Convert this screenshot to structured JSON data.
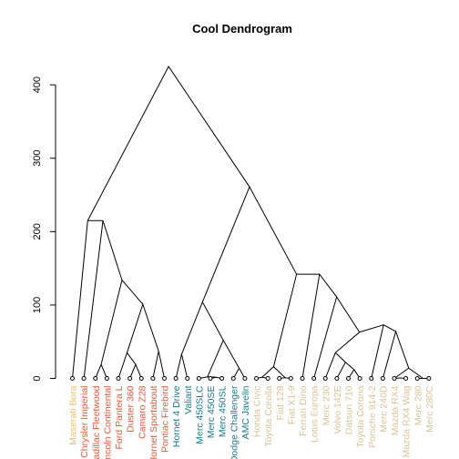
{
  "chart_data": {
    "type": "dendrogram",
    "title": "Cool Dendrogram",
    "xlabel": "",
    "ylabel": "",
    "ylim": [
      0,
      425
    ],
    "yticks": [
      0,
      100,
      200,
      300,
      400
    ],
    "grid": false,
    "colors": {
      "cluster1": "#E8C060",
      "cluster2": "#E05A3A",
      "cluster3": "#1A7A8A",
      "cluster4": "#D8C39A"
    },
    "leaves": [
      {
        "label": "Maserati Bora",
        "cluster": "cluster1"
      },
      {
        "label": "Chrysler Imperial",
        "cluster": "cluster2"
      },
      {
        "label": "Cadillac Fleetwood",
        "cluster": "cluster2"
      },
      {
        "label": "Lincoln Continental",
        "cluster": "cluster2"
      },
      {
        "label": "Ford Pantera L",
        "cluster": "cluster2"
      },
      {
        "label": "Duster 360",
        "cluster": "cluster2"
      },
      {
        "label": "Camaro Z28",
        "cluster": "cluster2"
      },
      {
        "label": "Hornet Sportabout",
        "cluster": "cluster2"
      },
      {
        "label": "Pontiac Firebird",
        "cluster": "cluster2"
      },
      {
        "label": "Hornet 4 Drive",
        "cluster": "cluster3"
      },
      {
        "label": "Valiant",
        "cluster": "cluster3"
      },
      {
        "label": "Merc 450SLC",
        "cluster": "cluster3"
      },
      {
        "label": "Merc 450SE",
        "cluster": "cluster3"
      },
      {
        "label": "Merc 450SL",
        "cluster": "cluster3"
      },
      {
        "label": "Dodge Challenger",
        "cluster": "cluster3"
      },
      {
        "label": "AMC Javelin",
        "cluster": "cluster3"
      },
      {
        "label": "Honda Civic",
        "cluster": "cluster4"
      },
      {
        "label": "Toyota Corolla",
        "cluster": "cluster4"
      },
      {
        "label": "Fiat 128",
        "cluster": "cluster4"
      },
      {
        "label": "Fiat X1-9",
        "cluster": "cluster4"
      },
      {
        "label": "Ferrari Dino",
        "cluster": "cluster4"
      },
      {
        "label": "Lotus Europa",
        "cluster": "cluster4"
      },
      {
        "label": "Merc 230",
        "cluster": "cluster4"
      },
      {
        "label": "Volvo 142E",
        "cluster": "cluster4"
      },
      {
        "label": "Datsun 710",
        "cluster": "cluster4"
      },
      {
        "label": "Toyota Corona",
        "cluster": "cluster4"
      },
      {
        "label": "Porsche 914-2",
        "cluster": "cluster4"
      },
      {
        "label": "Merc 240D",
        "cluster": "cluster4"
      },
      {
        "label": "Mazda RX4",
        "cluster": "cluster4"
      },
      {
        "label": "Mazda RX4 Wag",
        "cluster": "cluster4"
      },
      {
        "label": "Merc 280",
        "cluster": "cluster4"
      },
      {
        "label": "Merc 280C",
        "cluster": "cluster4"
      }
    ],
    "merges": [
      {
        "left": "Mazda RX4",
        "right": "Mazda RX4 Wag",
        "height": 0.6
      },
      {
        "left": "Merc 280",
        "right": "Merc 280C",
        "height": 0.0
      },
      {
        "left": "Merc 450SE",
        "right": "Merc 450SL",
        "height": 1.5
      },
      {
        "left": "Merc 450SLC",
        "right": "m3",
        "height": 2.1
      },
      {
        "left": "Honda Civic",
        "right": "Toyota Corolla",
        "height": 1.5
      },
      {
        "left": "Fiat 128",
        "right": "Fiat X1-9",
        "height": 1.0
      },
      {
        "left": "Dodge Challenger",
        "right": "AMC Javelin",
        "height": 14.0
      },
      {
        "left": "Hornet Sportabout",
        "right": "Pontiac Firebird",
        "height": 37.0
      },
      {
        "left": "Cadillac Fleetwood",
        "right": "Lincoln Continental",
        "height": 19.0
      },
      {
        "left": "Duster 360",
        "right": "Camaro Z28",
        "height": 19.0
      },
      {
        "left": "Datsun 710",
        "right": "Toyota Corona",
        "height": 12.0
      },
      {
        "left": "Volvo 142E",
        "right": "m11",
        "height": 22.0
      },
      {
        "left": "Merc 230",
        "right": "m12",
        "height": 35.0
      },
      {
        "left": "Ford Pantera L",
        "right": "m10",
        "height": 35.0
      },
      {
        "left": "m5",
        "right": "m6",
        "height": 16.0
      },
      {
        "left": "Mazda RX4",
        "right": "m2",
        "height": 14.0
      },
      {
        "left": "Merc 240D",
        "right": "m16",
        "height": 64.0
      },
      {
        "left": "Porsche 914-2",
        "right": "m17",
        "height": 73.0
      },
      {
        "left": "m13",
        "right": "m18",
        "height": 63.0
      },
      {
        "left": "Lotus Europa",
        "right": "m19",
        "height": 111.0
      },
      {
        "left": "Ferrari Dino",
        "right": "m20",
        "height": 142.0
      },
      {
        "left": "m15",
        "right": "m21",
        "height": 142.0
      },
      {
        "left": "Hornet 4 Drive",
        "right": "Valiant",
        "height": 33.0
      },
      {
        "left": "m4",
        "right": "m7",
        "height": 52.0
      },
      {
        "left": "m23",
        "right": "m24",
        "height": 104.0
      },
      {
        "left": "m25",
        "right": "m22",
        "height": 261.0
      },
      {
        "left": "m14",
        "right": "m8",
        "height": 101.0
      },
      {
        "left": "m9",
        "right": "m27",
        "height": 134.0
      },
      {
        "left": "Chrysler Imperial",
        "right": "m28",
        "height": 215.0
      },
      {
        "left": "Maserati Bora",
        "right": "m29",
        "height": 215.0
      },
      {
        "left": "m30",
        "right": "m26",
        "height": 425.0
      }
    ]
  }
}
